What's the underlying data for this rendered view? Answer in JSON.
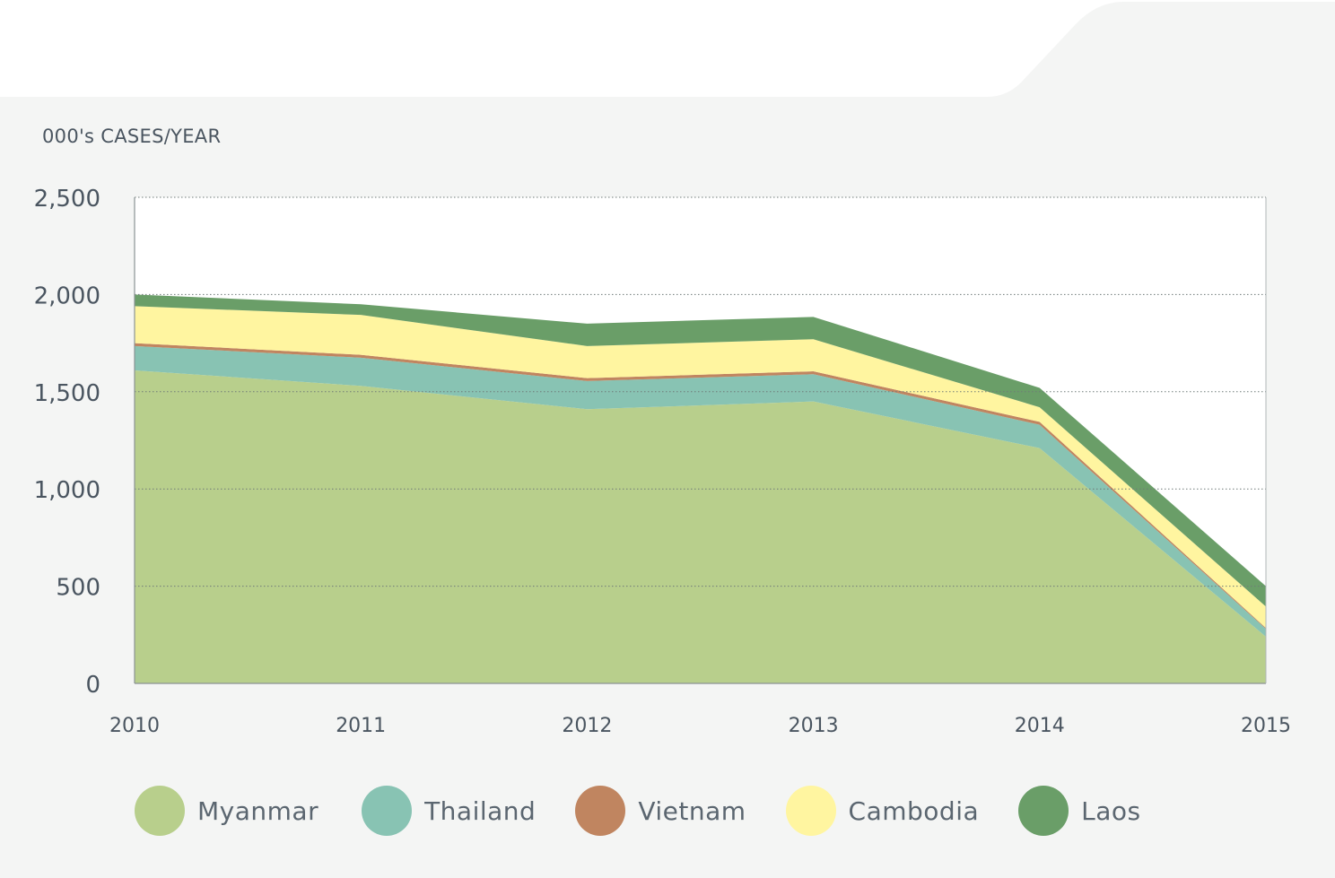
{
  "chart_data": {
    "type": "area",
    "stacked": true,
    "ylabel": "000's CASES/YEAR",
    "ylim": [
      0,
      2500
    ],
    "yticks": [
      "2,500",
      "2,000",
      "1,500",
      "1,000",
      "500",
      "0"
    ],
    "ytick_values": [
      2500,
      2000,
      1500,
      1000,
      500,
      0
    ],
    "x": [
      "2010",
      "2011",
      "2012",
      "2013",
      "2014",
      "2015"
    ],
    "grid": "horizontal-dotted",
    "legend_position": "bottom",
    "series": [
      {
        "name": "Myanmar",
        "color": "#b8cf8c",
        "values": [
          1610,
          1530,
          1410,
          1450,
          1210,
          240
        ]
      },
      {
        "name": "Thailand",
        "color": "#88c3b3",
        "values": [
          125,
          145,
          145,
          140,
          120,
          40
        ]
      },
      {
        "name": "Vietnam",
        "color": "#c08560",
        "values": [
          15,
          15,
          15,
          15,
          15,
          5
        ]
      },
      {
        "name": "Cambodia",
        "color": "#fff5a0",
        "values": [
          190,
          205,
          165,
          165,
          75,
          110
        ]
      },
      {
        "name": "Laos",
        "color": "#6a9e68",
        "values": [
          60,
          55,
          115,
          115,
          100,
          105
        ]
      }
    ]
  },
  "colors": {
    "panel_background": "#f4f5f4",
    "plot_background": "#ffffff",
    "axis_text": "#4a5560",
    "legend_text": "#5b6670"
  }
}
